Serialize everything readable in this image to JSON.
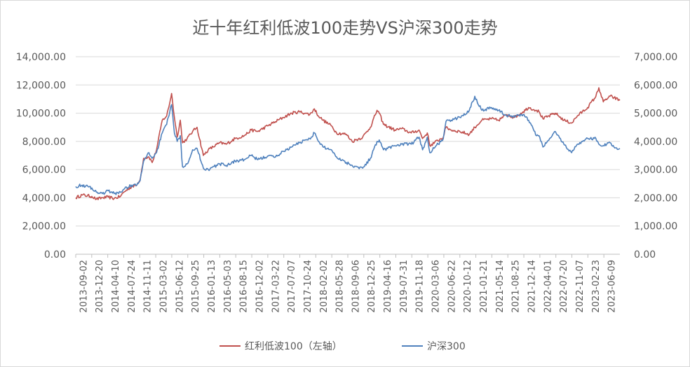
{
  "chart_data": {
    "type": "line",
    "title": "近十年红利低波100走势VS沪深300走势",
    "legend_position": "bottom",
    "grid": true,
    "y_left": {
      "range": [
        0,
        14000
      ],
      "ticks": [
        0,
        2000,
        4000,
        6000,
        8000,
        10000,
        12000,
        14000
      ],
      "tick_labels": [
        "0.00",
        "2,000.00",
        "4,000.00",
        "6,000.00",
        "8,000.00",
        "10,000.00",
        "12,000.00",
        "14,000.00"
      ]
    },
    "y_right": {
      "range": [
        0,
        7000
      ],
      "ticks": [
        0,
        1000,
        2000,
        3000,
        4000,
        5000,
        6000,
        7000
      ],
      "tick_labels": [
        "0.00",
        "1,000.00",
        "2,000.00",
        "3,000.00",
        "4,000.00",
        "5,000.00",
        "6,000.00",
        "7,000.00"
      ]
    },
    "x_tick_labels": [
      "2013-09-02",
      "2013-12-20",
      "2014-04-10",
      "2014-07-24",
      "2014-11-11",
      "2015-03-02",
      "2015-06-12",
      "2015-09-25",
      "2016-01-13",
      "2016-05-03",
      "2016-08-15",
      "2016-12-02",
      "2017-03-22",
      "2017-07-07",
      "2017-10-24",
      "2018-02-02",
      "2018-05-28",
      "2018-09-06",
      "2018-12-25",
      "2019-04-16",
      "2019-07-31",
      "2019-11-18",
      "2020-03-06",
      "2020-06-22",
      "2020-10-12",
      "2021-01-21",
      "2021-05-14",
      "2021-08-25",
      "2021-12-14",
      "2022-04-01",
      "2022-07-20",
      "2022-11-07",
      "2023-02-23",
      "2023-06-09"
    ],
    "x_range": [
      "2013-09-02",
      "2023-09-29"
    ],
    "series": [
      {
        "name": "红利低波100（左轴）",
        "axis": "left",
        "color": "#c0504d",
        "points": [
          [
            "2013-09-02",
            4000
          ],
          [
            "2013-10-15",
            4200
          ],
          [
            "2013-12-20",
            4100
          ],
          [
            "2014-01-20",
            3900
          ],
          [
            "2014-03-01",
            4000
          ],
          [
            "2014-04-10",
            4050
          ],
          [
            "2014-05-20",
            3950
          ],
          [
            "2014-07-01",
            4100
          ],
          [
            "2014-07-24",
            4400
          ],
          [
            "2014-09-15",
            4800
          ],
          [
            "2014-10-20",
            4900
          ],
          [
            "2014-11-11",
            5300
          ],
          [
            "2014-12-05",
            6800
          ],
          [
            "2015-01-10",
            6900
          ],
          [
            "2015-02-01",
            6500
          ],
          [
            "2015-03-02",
            7400
          ],
          [
            "2015-04-10",
            9500
          ],
          [
            "2015-05-10",
            9800
          ],
          [
            "2015-06-05",
            11000
          ],
          [
            "2015-06-12",
            11400
          ],
          [
            "2015-07-01",
            9700
          ],
          [
            "2015-07-20",
            8300
          ],
          [
            "2015-08-10",
            9500
          ],
          [
            "2015-08-25",
            7900
          ],
          [
            "2015-09-25",
            8200
          ],
          [
            "2015-11-01",
            8700
          ],
          [
            "2015-12-01",
            9000
          ],
          [
            "2016-01-13",
            7000
          ],
          [
            "2016-02-15",
            7400
          ],
          [
            "2016-05-03",
            7900
          ],
          [
            "2016-06-15",
            7800
          ],
          [
            "2016-08-15",
            8200
          ],
          [
            "2016-10-15",
            8400
          ],
          [
            "2016-12-02",
            8800
          ],
          [
            "2017-01-15",
            8700
          ],
          [
            "2017-03-22",
            9100
          ],
          [
            "2017-05-15",
            9400
          ],
          [
            "2017-07-07",
            9700
          ],
          [
            "2017-09-01",
            10000
          ],
          [
            "2017-10-24",
            10100
          ],
          [
            "2017-12-01",
            10000
          ],
          [
            "2018-01-01",
            9900
          ],
          [
            "2018-02-02",
            10300
          ],
          [
            "2018-03-01",
            9800
          ],
          [
            "2018-04-01",
            9500
          ],
          [
            "2018-05-28",
            9100
          ],
          [
            "2018-07-01",
            8600
          ],
          [
            "2018-09-06",
            8500
          ],
          [
            "2018-10-15",
            8000
          ],
          [
            "2018-12-25",
            8300
          ],
          [
            "2019-02-15",
            9000
          ],
          [
            "2019-04-01",
            10200
          ],
          [
            "2019-04-16",
            10000
          ],
          [
            "2019-05-15",
            9200
          ],
          [
            "2019-07-31",
            8800
          ],
          [
            "2019-09-15",
            8900
          ],
          [
            "2019-11-18",
            8600
          ],
          [
            "2020-01-10",
            8800
          ],
          [
            "2020-02-03",
            8200
          ],
          [
            "2020-03-06",
            8600
          ],
          [
            "2020-03-23",
            7700
          ],
          [
            "2020-06-22",
            8300
          ],
          [
            "2020-07-10",
            9000
          ],
          [
            "2020-08-15",
            8800
          ],
          [
            "2020-10-12",
            8700
          ],
          [
            "2020-12-15",
            8500
          ],
          [
            "2021-01-21",
            9000
          ],
          [
            "2021-03-10",
            9500
          ],
          [
            "2021-05-14",
            9600
          ],
          [
            "2021-07-01",
            9500
          ],
          [
            "2021-08-25",
            9900
          ],
          [
            "2021-10-15",
            9700
          ],
          [
            "2021-12-14",
            10100
          ],
          [
            "2022-01-20",
            10400
          ],
          [
            "2022-03-15",
            10200
          ],
          [
            "2022-04-01",
            10100
          ],
          [
            "2022-04-27",
            9600
          ],
          [
            "2022-07-20",
            10000
          ],
          [
            "2022-09-15",
            9500
          ],
          [
            "2022-11-07",
            9300
          ],
          [
            "2022-12-15",
            9800
          ],
          [
            "2023-02-23",
            10400
          ],
          [
            "2023-04-20",
            11200
          ],
          [
            "2023-05-10",
            11800
          ],
          [
            "2023-06-09",
            10800
          ],
          [
            "2023-07-25",
            11200
          ],
          [
            "2023-08-20",
            11100
          ],
          [
            "2023-09-29",
            10900
          ]
        ]
      },
      {
        "name": "沪深300",
        "axis": "right",
        "color": "#4f81bd",
        "points": [
          [
            "2013-09-02",
            2400
          ],
          [
            "2013-10-15",
            2450
          ],
          [
            "2013-12-20",
            2350
          ],
          [
            "2014-01-20",
            2200
          ],
          [
            "2014-03-01",
            2150
          ],
          [
            "2014-04-10",
            2250
          ],
          [
            "2014-05-20",
            2150
          ],
          [
            "2014-07-01",
            2200
          ],
          [
            "2014-07-24",
            2300
          ],
          [
            "2014-09-15",
            2450
          ],
          [
            "2014-10-20",
            2450
          ],
          [
            "2014-11-11",
            2600
          ],
          [
            "2014-12-05",
            3300
          ],
          [
            "2015-01-10",
            3600
          ],
          [
            "2015-02-01",
            3400
          ],
          [
            "2015-03-02",
            3600
          ],
          [
            "2015-04-10",
            4300
          ],
          [
            "2015-05-10",
            4600
          ],
          [
            "2015-06-05",
            5200
          ],
          [
            "2015-06-12",
            5300
          ],
          [
            "2015-07-01",
            4300
          ],
          [
            "2015-07-20",
            4000
          ],
          [
            "2015-08-10",
            4200
          ],
          [
            "2015-08-25",
            3100
          ],
          [
            "2015-09-25",
            3200
          ],
          [
            "2015-11-01",
            3700
          ],
          [
            "2015-12-01",
            3750
          ],
          [
            "2016-01-13",
            3050
          ],
          [
            "2016-02-15",
            3000
          ],
          [
            "2016-05-03",
            3200
          ],
          [
            "2016-06-15",
            3150
          ],
          [
            "2016-08-15",
            3300
          ],
          [
            "2016-10-15",
            3350
          ],
          [
            "2016-12-02",
            3500
          ],
          [
            "2017-01-15",
            3350
          ],
          [
            "2017-03-22",
            3480
          ],
          [
            "2017-05-15",
            3450
          ],
          [
            "2017-07-07",
            3650
          ],
          [
            "2017-09-01",
            3800
          ],
          [
            "2017-10-24",
            3950
          ],
          [
            "2017-12-01",
            4050
          ],
          [
            "2018-01-01",
            4100
          ],
          [
            "2018-02-02",
            4300
          ],
          [
            "2018-03-01",
            4000
          ],
          [
            "2018-04-01",
            3800
          ],
          [
            "2018-05-28",
            3700
          ],
          [
            "2018-07-01",
            3450
          ],
          [
            "2018-09-06",
            3250
          ],
          [
            "2018-10-15",
            3150
          ],
          [
            "2018-12-25",
            3050
          ],
          [
            "2019-02-15",
            3400
          ],
          [
            "2019-04-01",
            4000
          ],
          [
            "2019-04-16",
            4050
          ],
          [
            "2019-05-15",
            3700
          ],
          [
            "2019-07-31",
            3850
          ],
          [
            "2019-09-15",
            3900
          ],
          [
            "2019-11-18",
            3900
          ],
          [
            "2020-01-10",
            4150
          ],
          [
            "2020-02-03",
            3700
          ],
          [
            "2020-03-06",
            4150
          ],
          [
            "2020-03-23",
            3600
          ],
          [
            "2020-06-22",
            4100
          ],
          [
            "2020-07-10",
            4700
          ],
          [
            "2020-08-15",
            4750
          ],
          [
            "2020-10-12",
            4850
          ],
          [
            "2020-12-15",
            5100
          ],
          [
            "2021-01-21",
            5600
          ],
          [
            "2021-03-10",
            5100
          ],
          [
            "2021-05-14",
            5200
          ],
          [
            "2021-07-01",
            5100
          ],
          [
            "2021-08-25",
            4900
          ],
          [
            "2021-10-15",
            4900
          ],
          [
            "2021-12-14",
            4950
          ],
          [
            "2022-01-20",
            4750
          ],
          [
            "2022-03-15",
            4200
          ],
          [
            "2022-04-01",
            4200
          ],
          [
            "2022-04-27",
            3800
          ],
          [
            "2022-07-20",
            4350
          ],
          [
            "2022-09-15",
            3900
          ],
          [
            "2022-11-07",
            3600
          ],
          [
            "2022-12-15",
            3900
          ],
          [
            "2023-02-23",
            4100
          ],
          [
            "2023-04-20",
            4100
          ],
          [
            "2023-05-10",
            3900
          ],
          [
            "2023-06-09",
            3850
          ],
          [
            "2023-07-25",
            3950
          ],
          [
            "2023-08-20",
            3800
          ],
          [
            "2023-09-29",
            3750
          ]
        ]
      }
    ]
  }
}
